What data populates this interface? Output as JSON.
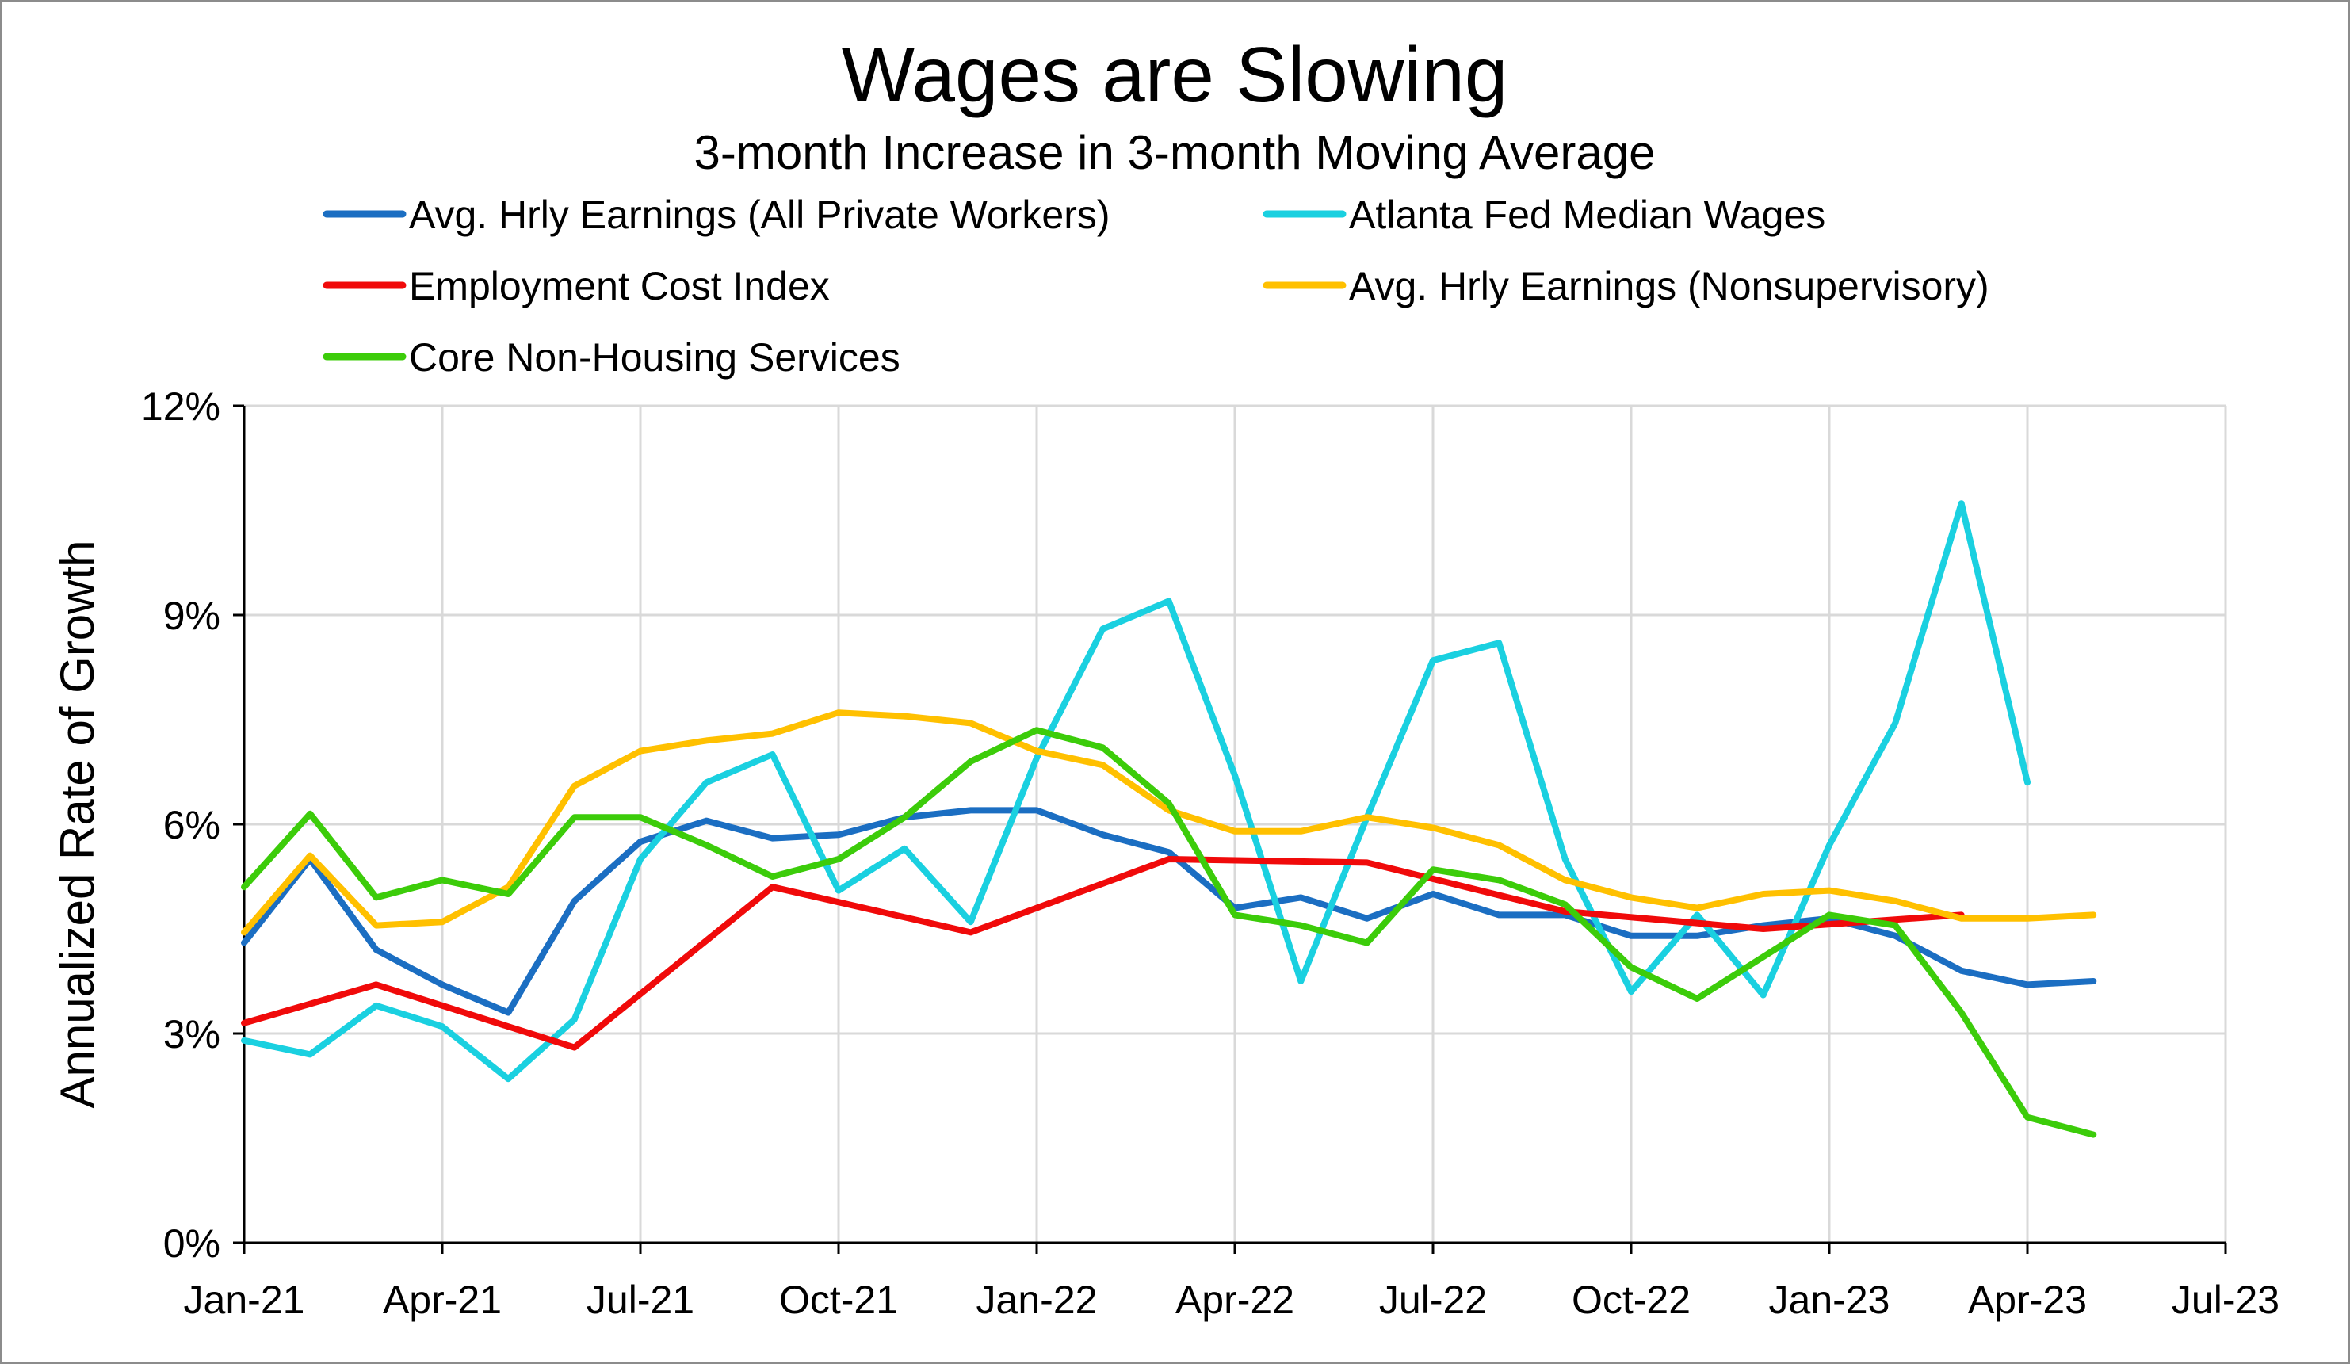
{
  "chart_data": {
    "type": "line",
    "title": "Wages are Slowing",
    "subtitle": "3-month Increase in 3-month Moving Average",
    "xlabel": "",
    "ylabel": "Annualized Rate of Growth",
    "ylim": [
      0,
      12
    ],
    "y_ticks": [
      0,
      3,
      6,
      9,
      12
    ],
    "y_tick_labels": [
      "0%",
      "3%",
      "6%",
      "9%",
      "12%"
    ],
    "grid": true,
    "legend_position": "top",
    "x_start": "Jan-21",
    "x_tick_labels": [
      "Jan-21",
      "Apr-21",
      "Jul-21",
      "Oct-21",
      "Jan-22",
      "Apr-22",
      "Jul-22",
      "Oct-22",
      "Jan-23",
      "Apr-23",
      "Jul-23"
    ],
    "x_tick_index": [
      0,
      3,
      6,
      9,
      12,
      15,
      18,
      21,
      24,
      27,
      30
    ],
    "x_max_index": 30,
    "series": [
      {
        "name": "Avg. Hrly Earnings (All Private Workers)",
        "color": "#1b6ec2",
        "x": [
          0,
          1,
          2,
          3,
          4,
          5,
          6,
          7,
          8,
          9,
          10,
          11,
          12,
          13,
          14,
          15,
          16,
          17,
          18,
          19,
          20,
          21,
          22,
          23,
          24,
          25,
          26,
          27,
          28
        ],
        "values": [
          4.3,
          5.5,
          4.2,
          3.7,
          3.3,
          4.9,
          5.75,
          6.05,
          5.8,
          5.85,
          6.1,
          6.2,
          6.2,
          5.85,
          5.6,
          4.8,
          4.95,
          4.65,
          5.0,
          4.7,
          4.7,
          4.4,
          4.4,
          4.55,
          4.65,
          4.4,
          3.9,
          3.7,
          3.75
        ]
      },
      {
        "name": "Atlanta Fed Median Wages",
        "color": "#1ad0e0",
        "x": [
          0,
          1,
          2,
          3,
          4,
          5,
          6,
          7,
          8,
          9,
          10,
          11,
          12,
          13,
          14,
          15,
          16,
          17,
          18,
          19,
          20,
          21,
          22,
          23,
          24,
          25,
          26,
          27
        ],
        "values": [
          2.9,
          2.7,
          3.4,
          3.1,
          2.35,
          3.2,
          5.5,
          6.6,
          7.0,
          5.05,
          5.65,
          4.6,
          6.95,
          8.8,
          9.2,
          6.7,
          3.75,
          6.1,
          8.35,
          8.6,
          5.5,
          3.6,
          4.7,
          3.55,
          5.7,
          7.45,
          10.6,
          6.6
        ]
      },
      {
        "name": "Employment Cost Index",
        "color": "#f00a0a",
        "x": [
          0,
          2,
          5,
          8,
          11,
          14,
          17,
          20,
          23,
          26
        ],
        "values": [
          3.15,
          3.7,
          2.8,
          5.1,
          4.45,
          5.5,
          5.45,
          4.75,
          4.5,
          4.7
        ]
      },
      {
        "name": "Avg. Hrly Earnings (Nonsupervisory)",
        "color": "#ffc000",
        "x": [
          0,
          1,
          2,
          3,
          4,
          5,
          6,
          7,
          8,
          9,
          10,
          11,
          12,
          13,
          14,
          15,
          16,
          17,
          18,
          19,
          20,
          21,
          22,
          23,
          24,
          25,
          26,
          27,
          28
        ],
        "values": [
          4.45,
          5.55,
          4.55,
          4.6,
          5.1,
          6.55,
          7.05,
          7.2,
          7.3,
          7.6,
          7.55,
          7.45,
          7.05,
          6.85,
          6.2,
          5.9,
          5.9,
          6.1,
          5.95,
          5.7,
          5.2,
          4.95,
          4.8,
          5.0,
          5.05,
          4.9,
          4.65,
          4.65,
          4.7
        ]
      },
      {
        "name": "Core Non-Housing Services",
        "color": "#3ccc0a",
        "x": [
          0,
          1,
          2,
          3,
          4,
          5,
          6,
          7,
          8,
          9,
          10,
          11,
          12,
          13,
          14,
          15,
          16,
          17,
          18,
          19,
          20,
          21,
          22,
          23,
          24,
          25,
          26,
          27,
          28
        ],
        "values": [
          5.1,
          6.15,
          4.95,
          5.2,
          5.0,
          6.1,
          6.1,
          5.7,
          5.25,
          5.5,
          6.1,
          6.9,
          7.35,
          7.1,
          6.3,
          4.7,
          4.55,
          4.3,
          5.35,
          5.2,
          4.85,
          3.95,
          3.5,
          4.1,
          4.7,
          4.55,
          3.3,
          1.8,
          1.55
        ]
      }
    ]
  }
}
